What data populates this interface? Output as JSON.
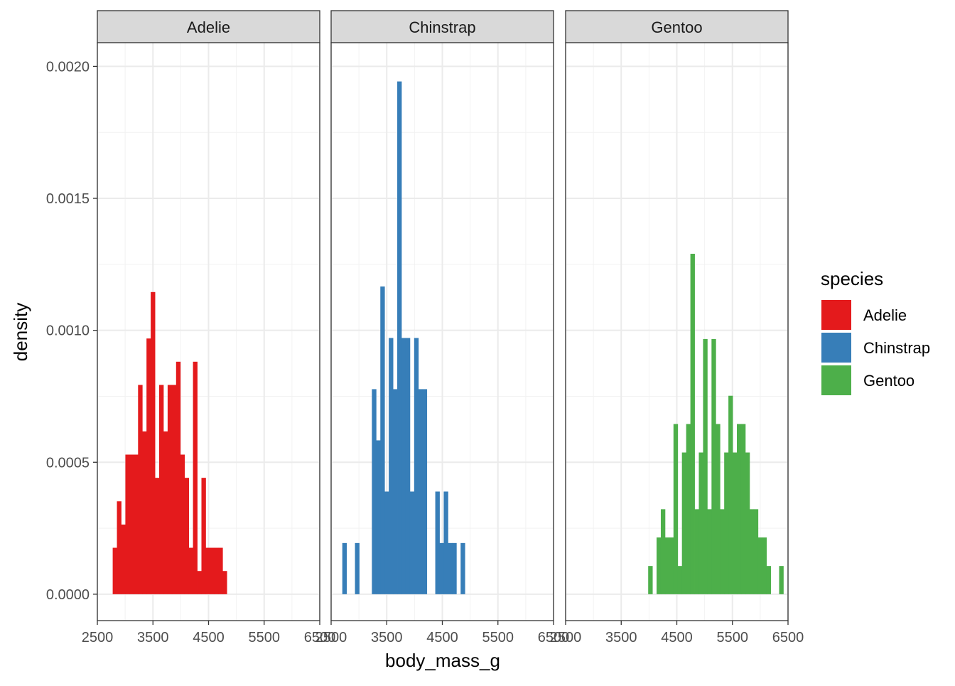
{
  "chart_data": {
    "type": "bar",
    "subtype": "faceted-histogram",
    "xlabel": "body_mass_g",
    "ylabel": "density",
    "xlim": [
      2500,
      6500
    ],
    "ylim": [
      -0.0001,
      0.00209
    ],
    "x_ticks": [
      2500,
      3500,
      4500,
      5500,
      6500
    ],
    "y_ticks": [
      0.0,
      0.0005,
      0.001,
      0.0015,
      0.002
    ],
    "y_tick_labels": [
      "0.0000",
      "0.0005",
      "0.0010",
      "0.0015",
      "0.0020"
    ],
    "grid": true,
    "bin_width": 76,
    "legend": {
      "title": "species",
      "placement": "right",
      "entries": [
        {
          "label": "Adelie",
          "color": "#E41A1C"
        },
        {
          "label": "Chinstrap",
          "color": "#377EB8"
        },
        {
          "label": "Gentoo",
          "color": "#4DAF4A"
        }
      ]
    },
    "panels": [
      {
        "name": "Adelie",
        "color": "#E41A1C",
        "bins": [
          {
            "x": 2814,
            "density": 0.000176
          },
          {
            "x": 2890,
            "density": 0.000352
          },
          {
            "x": 2966,
            "density": 0.000264
          },
          {
            "x": 3042,
            "density": 0.000529
          },
          {
            "x": 3118,
            "density": 0.000529
          },
          {
            "x": 3194,
            "density": 0.000529
          },
          {
            "x": 3270,
            "density": 0.000793
          },
          {
            "x": 3346,
            "density": 0.000617
          },
          {
            "x": 3422,
            "density": 0.000969
          },
          {
            "x": 3498,
            "density": 0.001145
          },
          {
            "x": 3574,
            "density": 0.000441
          },
          {
            "x": 3650,
            "density": 0.000793
          },
          {
            "x": 3726,
            "density": 0.000617
          },
          {
            "x": 3802,
            "density": 0.000793
          },
          {
            "x": 3878,
            "density": 0.000793
          },
          {
            "x": 3954,
            "density": 0.000881
          },
          {
            "x": 4030,
            "density": 0.000529
          },
          {
            "x": 4106,
            "density": 0.000441
          },
          {
            "x": 4182,
            "density": 0.000176
          },
          {
            "x": 4258,
            "density": 0.000881
          },
          {
            "x": 4334,
            "density": 8.8e-05
          },
          {
            "x": 4410,
            "density": 0.000441
          },
          {
            "x": 4486,
            "density": 0.000176
          },
          {
            "x": 4562,
            "density": 0.000176
          },
          {
            "x": 4638,
            "density": 0.000176
          },
          {
            "x": 4714,
            "density": 0.000176
          },
          {
            "x": 4790,
            "density": 8.8e-05
          }
        ]
      },
      {
        "name": "Chinstrap",
        "color": "#377EB8",
        "bins": [
          {
            "x": 2739,
            "density": 0.000194
          },
          {
            "x": 2967,
            "density": 0.000194
          },
          {
            "x": 3271,
            "density": 0.000777
          },
          {
            "x": 3347,
            "density": 0.000583
          },
          {
            "x": 3423,
            "density": 0.001166
          },
          {
            "x": 3499,
            "density": 0.000389
          },
          {
            "x": 3575,
            "density": 0.000971
          },
          {
            "x": 3651,
            "density": 0.000777
          },
          {
            "x": 3727,
            "density": 0.001943
          },
          {
            "x": 3803,
            "density": 0.000971
          },
          {
            "x": 3879,
            "density": 0.000971
          },
          {
            "x": 3955,
            "density": 0.000389
          },
          {
            "x": 4031,
            "density": 0.000971
          },
          {
            "x": 4107,
            "density": 0.000777
          },
          {
            "x": 4183,
            "density": 0.000777
          },
          {
            "x": 4411,
            "density": 0.000389
          },
          {
            "x": 4487,
            "density": 0.000194
          },
          {
            "x": 4563,
            "density": 0.000389
          },
          {
            "x": 4639,
            "density": 0.000194
          },
          {
            "x": 4715,
            "density": 0.000194
          },
          {
            "x": 4867,
            "density": 0.000194
          }
        ]
      },
      {
        "name": "Gentoo",
        "color": "#4DAF4A",
        "bins": [
          {
            "x": 4023,
            "density": 0.000107
          },
          {
            "x": 4174,
            "density": 0.000215
          },
          {
            "x": 4250,
            "density": 0.000322
          },
          {
            "x": 4326,
            "density": 0.000215
          },
          {
            "x": 4402,
            "density": 0.000215
          },
          {
            "x": 4478,
            "density": 0.000645
          },
          {
            "x": 4554,
            "density": 0.000107
          },
          {
            "x": 4630,
            "density": 0.000537
          },
          {
            "x": 4706,
            "density": 0.000645
          },
          {
            "x": 4782,
            "density": 0.00129
          },
          {
            "x": 4858,
            "density": 0.000322
          },
          {
            "x": 4934,
            "density": 0.000537
          },
          {
            "x": 5010,
            "density": 0.000967
          },
          {
            "x": 5086,
            "density": 0.000322
          },
          {
            "x": 5162,
            "density": 0.000967
          },
          {
            "x": 5238,
            "density": 0.000645
          },
          {
            "x": 5314,
            "density": 0.000322
          },
          {
            "x": 5390,
            "density": 0.000537
          },
          {
            "x": 5466,
            "density": 0.000752
          },
          {
            "x": 5542,
            "density": 0.000537
          },
          {
            "x": 5618,
            "density": 0.000645
          },
          {
            "x": 5694,
            "density": 0.000645
          },
          {
            "x": 5770,
            "density": 0.000537
          },
          {
            "x": 5846,
            "density": 0.000322
          },
          {
            "x": 5922,
            "density": 0.000322
          },
          {
            "x": 5998,
            "density": 0.000215
          },
          {
            "x": 6074,
            "density": 0.000215
          },
          {
            "x": 6150,
            "density": 0.000107
          },
          {
            "x": 6378,
            "density": 0.000107
          }
        ]
      }
    ]
  }
}
